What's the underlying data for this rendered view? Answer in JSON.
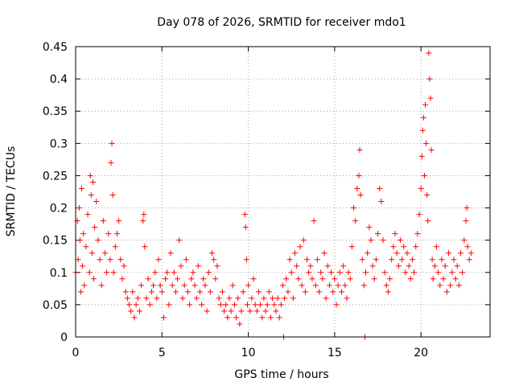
{
  "chart_data": {
    "type": "scatter",
    "title": "Day 078 of 2026, SRMTID for receiver mdo1",
    "xlabel": "GPS time / hours",
    "ylabel": "SRMTID / TECUs",
    "xlim": [
      0,
      24
    ],
    "ylim": [
      0,
      0.45
    ],
    "x_ticks": [
      0,
      5,
      10,
      15,
      20
    ],
    "y_ticks": [
      0,
      0.05,
      0.1,
      0.15,
      0.2,
      0.25,
      0.3,
      0.35,
      0.4,
      0.45
    ],
    "x_tick_labels": [
      "0",
      "5",
      "10",
      "15",
      "20"
    ],
    "y_tick_labels": [
      "0",
      "0.05",
      "0.1",
      "0.15",
      "0.2",
      "0.25",
      "0.3",
      "0.35",
      "0.4",
      "0.45"
    ],
    "grid": true,
    "marker": "+",
    "series_color": "#ff0000",
    "series": [
      {
        "name": "SRMTID",
        "points": [
          [
            0.0,
            0.1
          ],
          [
            0.1,
            0.18
          ],
          [
            0.15,
            0.12
          ],
          [
            0.2,
            0.2
          ],
          [
            0.25,
            0.15
          ],
          [
            0.3,
            0.07
          ],
          [
            0.35,
            0.23
          ],
          [
            0.4,
            0.11
          ],
          [
            0.45,
            0.16
          ],
          [
            0.5,
            0.08
          ],
          [
            0.6,
            0.14
          ],
          [
            0.7,
            0.19
          ],
          [
            0.8,
            0.1
          ],
          [
            0.85,
            0.25
          ],
          [
            0.9,
            0.22
          ],
          [
            0.95,
            0.13
          ],
          [
            1.0,
            0.24
          ],
          [
            1.05,
            0.09
          ],
          [
            1.1,
            0.17
          ],
          [
            1.2,
            0.21
          ],
          [
            1.3,
            0.15
          ],
          [
            1.4,
            0.12
          ],
          [
            1.5,
            0.08
          ],
          [
            1.6,
            0.18
          ],
          [
            1.7,
            0.13
          ],
          [
            1.8,
            0.1
          ],
          [
            1.9,
            0.16
          ],
          [
            2.0,
            0.12
          ],
          [
            2.05,
            0.27
          ],
          [
            2.1,
            0.3
          ],
          [
            2.15,
            0.22
          ],
          [
            2.2,
            0.1
          ],
          [
            2.3,
            0.14
          ],
          [
            2.4,
            0.16
          ],
          [
            2.5,
            0.18
          ],
          [
            2.6,
            0.12
          ],
          [
            2.7,
            0.09
          ],
          [
            2.8,
            0.11
          ],
          [
            2.9,
            0.07
          ],
          [
            3.0,
            0.06
          ],
          [
            3.1,
            0.05
          ],
          [
            3.2,
            0.04
          ],
          [
            3.3,
            0.07
          ],
          [
            3.4,
            0.03
          ],
          [
            3.5,
            0.05
          ],
          [
            3.6,
            0.06
          ],
          [
            3.7,
            0.04
          ],
          [
            3.8,
            0.08
          ],
          [
            3.9,
            0.18
          ],
          [
            3.95,
            0.19
          ],
          [
            4.0,
            0.14
          ],
          [
            4.1,
            0.06
          ],
          [
            4.2,
            0.09
          ],
          [
            4.3,
            0.05
          ],
          [
            4.4,
            0.07
          ],
          [
            4.5,
            0.08
          ],
          [
            4.6,
            0.1
          ],
          [
            4.7,
            0.06
          ],
          [
            4.8,
            0.12
          ],
          [
            4.9,
            0.08
          ],
          [
            5.0,
            0.07
          ],
          [
            5.1,
            0.03
          ],
          [
            5.2,
            0.09
          ],
          [
            5.3,
            0.1
          ],
          [
            5.4,
            0.05
          ],
          [
            5.5,
            0.13
          ],
          [
            5.6,
            0.08
          ],
          [
            5.7,
            0.1
          ],
          [
            5.8,
            0.07
          ],
          [
            5.9,
            0.09
          ],
          [
            6.0,
            0.15
          ],
          [
            6.1,
            0.11
          ],
          [
            6.2,
            0.06
          ],
          [
            6.3,
            0.08
          ],
          [
            6.4,
            0.12
          ],
          [
            6.5,
            0.07
          ],
          [
            6.6,
            0.05
          ],
          [
            6.7,
            0.09
          ],
          [
            6.8,
            0.1
          ],
          [
            6.9,
            0.08
          ],
          [
            7.0,
            0.06
          ],
          [
            7.1,
            0.11
          ],
          [
            7.2,
            0.07
          ],
          [
            7.3,
            0.05
          ],
          [
            7.4,
            0.09
          ],
          [
            7.5,
            0.08
          ],
          [
            7.6,
            0.04
          ],
          [
            7.7,
            0.1
          ],
          [
            7.8,
            0.07
          ],
          [
            7.9,
            0.13
          ],
          [
            8.0,
            0.12
          ],
          [
            8.1,
            0.09
          ],
          [
            8.2,
            0.11
          ],
          [
            8.3,
            0.06
          ],
          [
            8.4,
            0.05
          ],
          [
            8.5,
            0.07
          ],
          [
            8.6,
            0.04
          ],
          [
            8.7,
            0.05
          ],
          [
            8.8,
            0.03
          ],
          [
            8.9,
            0.06
          ],
          [
            9.0,
            0.04
          ],
          [
            9.1,
            0.08
          ],
          [
            9.2,
            0.05
          ],
          [
            9.3,
            0.03
          ],
          [
            9.4,
            0.06
          ],
          [
            9.5,
            0.02
          ],
          [
            9.6,
            0.04
          ],
          [
            9.7,
            0.07
          ],
          [
            9.8,
            0.19
          ],
          [
            9.85,
            0.17
          ],
          [
            9.9,
            0.12
          ],
          [
            9.95,
            0.05
          ],
          [
            10.0,
            0.08
          ],
          [
            10.1,
            0.04
          ],
          [
            10.2,
            0.06
          ],
          [
            10.3,
            0.09
          ],
          [
            10.4,
            0.05
          ],
          [
            10.5,
            0.04
          ],
          [
            10.6,
            0.07
          ],
          [
            10.7,
            0.05
          ],
          [
            10.8,
            0.03
          ],
          [
            10.9,
            0.06
          ],
          [
            11.0,
            0.04
          ],
          [
            11.1,
            0.05
          ],
          [
            11.2,
            0.07
          ],
          [
            11.3,
            0.03
          ],
          [
            11.4,
            0.06
          ],
          [
            11.5,
            0.05
          ],
          [
            11.6,
            0.04
          ],
          [
            11.7,
            0.06
          ],
          [
            11.8,
            0.03
          ],
          [
            11.9,
            0.05
          ],
          [
            12.0,
            0.08
          ],
          [
            12.05,
            0.0
          ],
          [
            12.1,
            0.06
          ],
          [
            12.2,
            0.09
          ],
          [
            12.3,
            0.07
          ],
          [
            12.4,
            0.12
          ],
          [
            12.5,
            0.1
          ],
          [
            12.6,
            0.06
          ],
          [
            12.7,
            0.13
          ],
          [
            12.8,
            0.11
          ],
          [
            12.9,
            0.09
          ],
          [
            13.0,
            0.14
          ],
          [
            13.1,
            0.08
          ],
          [
            13.2,
            0.15
          ],
          [
            13.3,
            0.07
          ],
          [
            13.4,
            0.12
          ],
          [
            13.5,
            0.1
          ],
          [
            13.6,
            0.11
          ],
          [
            13.7,
            0.09
          ],
          [
            13.8,
            0.18
          ],
          [
            13.9,
            0.08
          ],
          [
            14.0,
            0.12
          ],
          [
            14.1,
            0.07
          ],
          [
            14.2,
            0.1
          ],
          [
            14.3,
            0.09
          ],
          [
            14.4,
            0.13
          ],
          [
            14.5,
            0.06
          ],
          [
            14.6,
            0.11
          ],
          [
            14.7,
            0.08
          ],
          [
            14.8,
            0.1
          ],
          [
            14.9,
            0.07
          ],
          [
            15.0,
            0.09
          ],
          [
            15.1,
            0.05
          ],
          [
            15.2,
            0.08
          ],
          [
            15.3,
            0.1
          ],
          [
            15.4,
            0.07
          ],
          [
            15.5,
            0.11
          ],
          [
            15.6,
            0.08
          ],
          [
            15.7,
            0.06
          ],
          [
            15.8,
            0.1
          ],
          [
            15.9,
            0.09
          ],
          [
            16.0,
            0.14
          ],
          [
            16.1,
            0.2
          ],
          [
            16.2,
            0.18
          ],
          [
            16.3,
            0.23
          ],
          [
            16.4,
            0.25
          ],
          [
            16.45,
            0.29
          ],
          [
            16.5,
            0.22
          ],
          [
            16.6,
            0.12
          ],
          [
            16.7,
            0.08
          ],
          [
            16.75,
            0.0
          ],
          [
            16.8,
            0.1
          ],
          [
            16.9,
            0.13
          ],
          [
            17.0,
            0.17
          ],
          [
            17.1,
            0.15
          ],
          [
            17.2,
            0.11
          ],
          [
            17.3,
            0.09
          ],
          [
            17.4,
            0.12
          ],
          [
            17.5,
            0.16
          ],
          [
            17.6,
            0.23
          ],
          [
            17.7,
            0.21
          ],
          [
            17.8,
            0.15
          ],
          [
            17.9,
            0.1
          ],
          [
            18.0,
            0.08
          ],
          [
            18.1,
            0.07
          ],
          [
            18.2,
            0.09
          ],
          [
            18.3,
            0.12
          ],
          [
            18.4,
            0.14
          ],
          [
            18.5,
            0.16
          ],
          [
            18.6,
            0.13
          ],
          [
            18.7,
            0.11
          ],
          [
            18.8,
            0.15
          ],
          [
            18.9,
            0.12
          ],
          [
            19.0,
            0.14
          ],
          [
            19.1,
            0.1
          ],
          [
            19.2,
            0.13
          ],
          [
            19.3,
            0.11
          ],
          [
            19.4,
            0.09
          ],
          [
            19.5,
            0.12
          ],
          [
            19.6,
            0.1
          ],
          [
            19.7,
            0.14
          ],
          [
            19.8,
            0.16
          ],
          [
            19.9,
            0.19
          ],
          [
            20.0,
            0.23
          ],
          [
            20.05,
            0.28
          ],
          [
            20.1,
            0.32
          ],
          [
            20.15,
            0.34
          ],
          [
            20.2,
            0.25
          ],
          [
            20.25,
            0.36
          ],
          [
            20.3,
            0.3
          ],
          [
            20.35,
            0.22
          ],
          [
            20.4,
            0.18
          ],
          [
            20.45,
            0.44
          ],
          [
            20.5,
            0.4
          ],
          [
            20.55,
            0.37
          ],
          [
            20.6,
            0.29
          ],
          [
            20.65,
            0.12
          ],
          [
            20.7,
            0.09
          ],
          [
            20.8,
            0.11
          ],
          [
            20.9,
            0.14
          ],
          [
            21.0,
            0.1
          ],
          [
            21.1,
            0.08
          ],
          [
            21.2,
            0.12
          ],
          [
            21.3,
            0.09
          ],
          [
            21.4,
            0.11
          ],
          [
            21.5,
            0.07
          ],
          [
            21.6,
            0.13
          ],
          [
            21.7,
            0.08
          ],
          [
            21.8,
            0.1
          ],
          [
            21.9,
            0.12
          ],
          [
            22.0,
            0.09
          ],
          [
            22.1,
            0.11
          ],
          [
            22.2,
            0.08
          ],
          [
            22.3,
            0.13
          ],
          [
            22.4,
            0.1
          ],
          [
            22.5,
            0.15
          ],
          [
            22.6,
            0.18
          ],
          [
            22.65,
            0.2
          ],
          [
            22.7,
            0.14
          ],
          [
            22.8,
            0.12
          ],
          [
            22.9,
            0.13
          ]
        ]
      }
    ]
  }
}
